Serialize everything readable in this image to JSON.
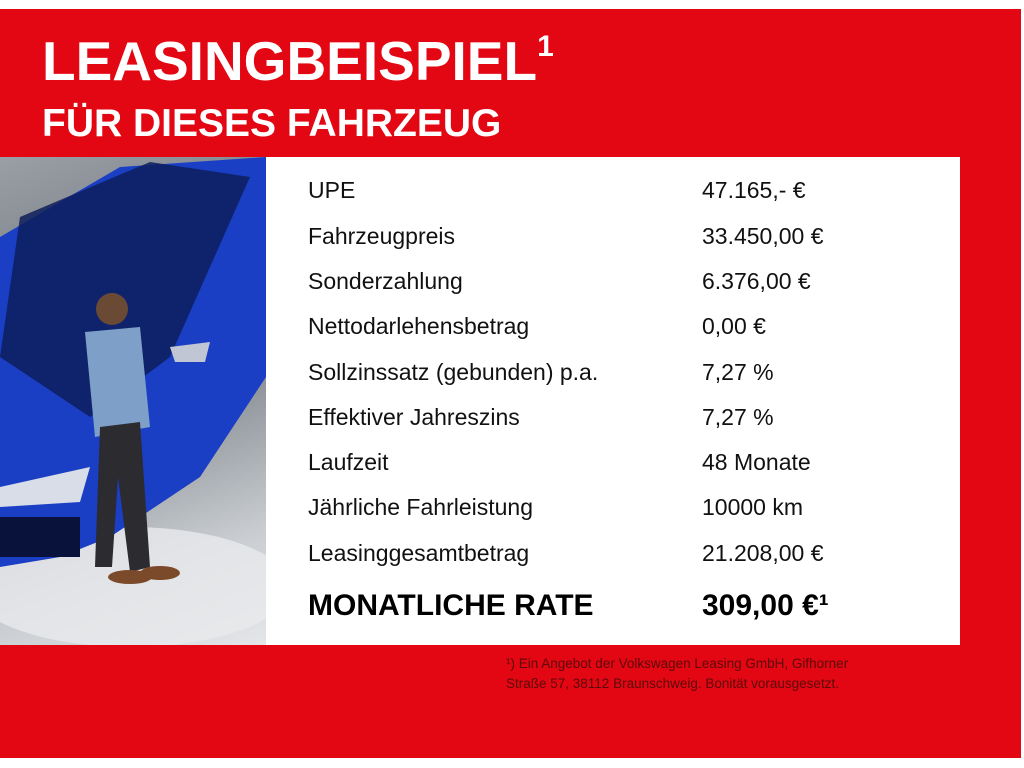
{
  "header": {
    "title": "LEASINGBEISPIEL",
    "title_sup": "1",
    "subtitle": "FÜR DIESES FAHRZEUG"
  },
  "colors": {
    "brand_red": "#e30613",
    "car_blue": "#1a3fc4"
  },
  "table": {
    "rows": [
      {
        "label": "UPE",
        "value": "47.165,- €"
      },
      {
        "label": "Fahrzeugpreis",
        "value": "33.450,00 €"
      },
      {
        "label": "Sonderzahlung",
        "value": "6.376,00 €"
      },
      {
        "label": "Nettodarlehensbetrag",
        "value": "0,00 €"
      },
      {
        "label": "Sollzinssatz (gebunden) p.a.",
        "value": "7,27 %"
      },
      {
        "label": "Effektiver Jahreszins",
        "value": "7,27 %"
      },
      {
        "label": "Laufzeit",
        "value": "48 Monate"
      },
      {
        "label": "Jährliche Fahrleistung",
        "value": "10000 km"
      },
      {
        "label": "Leasinggesamtbetrag",
        "value": "21.208,00 €"
      }
    ],
    "total": {
      "label": "MONATLICHE RATE",
      "value": "309,00 €¹"
    }
  },
  "footnote": {
    "line1": "¹) Ein Angebot der Volkswagen Leasing GmbH, Gifhorner",
    "line2": "Straße 57, 38112 Braunschweig. Bonität vorausgesetzt."
  }
}
